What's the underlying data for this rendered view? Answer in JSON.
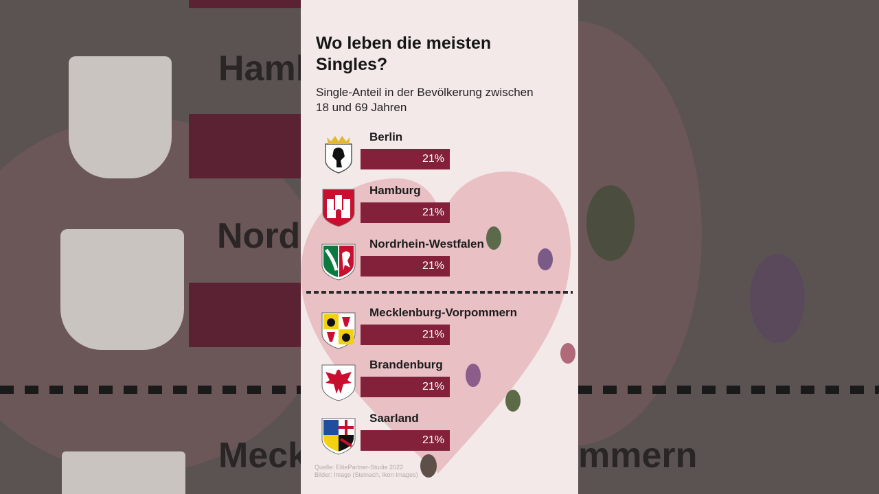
{
  "title": "Wo leben die meisten Singles?",
  "subtitle": "Single-Anteil in der Bevölkerung zwischen 18 und 69 Jahren",
  "source_line1": "Quelle: ElitePartner-Studie 2022",
  "source_line2": "Bilder: Imago (Steinach, Ikon Images)",
  "background": {
    "text_hamburg": "Hamb",
    "text_nrw": "Nordr",
    "text_meck_left": "Meckl",
    "text_meck_right": "mmern"
  },
  "colors": {
    "bar": "#83203a",
    "panel": "#f3e9e8",
    "heart": "#e6b9bd"
  },
  "chart_data": {
    "type": "bar",
    "orientation": "horizontal",
    "title": "Wo leben die meisten Singles?",
    "subtitle": "Single-Anteil in der Bevölkerung zwischen 18 und 69 Jahren",
    "categories": [
      "Berlin",
      "Hamburg",
      "Nordrhein-Westfalen",
      "Mecklenburg-Vorpommern",
      "Brandenburg",
      "Saarland"
    ],
    "values": [
      21,
      21,
      21,
      21,
      21,
      21
    ],
    "value_labels": [
      "21%",
      "21%",
      "21%",
      "21%",
      "21%",
      "21%"
    ],
    "unit": "%",
    "icons": [
      "berlin-crest-icon",
      "hamburg-crest-icon",
      "nrw-crest-icon",
      "mv-crest-icon",
      "brandenburg-crest-icon",
      "saarland-crest-icon"
    ],
    "groups": [
      {
        "categories": [
          "Berlin",
          "Hamburg",
          "Nordrhein-Westfalen"
        ]
      },
      {
        "categories": [
          "Mecklenburg-Vorpommern",
          "Brandenburg",
          "Saarland"
        ]
      }
    ],
    "grid": false,
    "legend": "none"
  }
}
